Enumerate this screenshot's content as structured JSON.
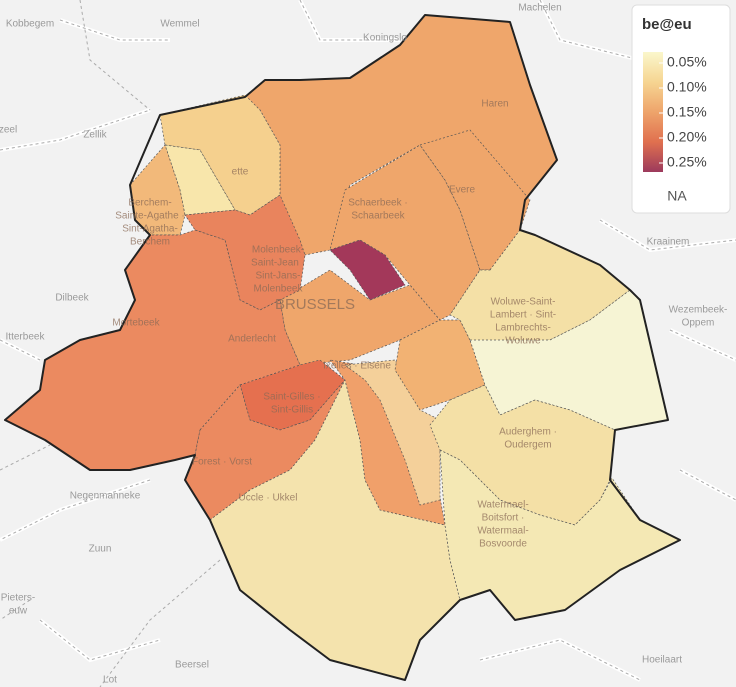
{
  "legend": {
    "title": "be@eu",
    "range": [
      0.028,
      0.268
    ],
    "ticks": [
      {
        "value": 0.05,
        "label": "0.05%"
      },
      {
        "value": 0.1,
        "label": "0.10%"
      },
      {
        "value": 0.15,
        "label": "0.15%"
      },
      {
        "value": 0.2,
        "label": "0.20%"
      },
      {
        "value": 0.25,
        "label": "0.25%"
      }
    ],
    "colors": [
      "#faf7cc",
      "#f6d592",
      "#eea46b",
      "#e0704f",
      "#9c3a5c"
    ],
    "na_label": "NA"
  },
  "regions": [
    {
      "color": "#efa66b"
    },
    {
      "color": "#efa66b"
    },
    {
      "color": "#f5d08e"
    },
    {
      "color": "#f8e6ab"
    },
    {
      "color": "#f2b97a"
    },
    {
      "color": "#e9845d"
    },
    {
      "color": "#eb8a60"
    },
    {
      "color": "#e5704f"
    },
    {
      "color": "#eb8a60"
    },
    {
      "color": "#f4e3ad"
    },
    {
      "color": "#f0a06a"
    },
    {
      "color": "#f4d09a"
    },
    {
      "color": "#f2b273"
    },
    {
      "color": "#efa66b"
    },
    {
      "color": "#efa66b"
    },
    {
      "color": "#a3385a"
    },
    {
      "color": "#f4e0a6"
    },
    {
      "color": "#f6f4d4"
    },
    {
      "color": "#f4e0a6"
    },
    {
      "color": "#f4e8b4"
    }
  ],
  "map_labels": [
    [
      "Kobbegem"
    ],
    [
      "Wemmel"
    ],
    [
      "Machelen"
    ],
    [
      "Koningslo"
    ],
    [
      "Zellik"
    ],
    [
      "zeel"
    ],
    [
      "Dilbeek"
    ],
    [
      "Itterbeek"
    ],
    [
      "Kraainem"
    ],
    [
      "Wezembeek-",
      "Oppem"
    ],
    [
      "Negenmanneke"
    ],
    [
      "Zuun"
    ],
    [
      "Pieters-",
      "euw"
    ],
    [
      "Beersel"
    ],
    [
      "Lot"
    ],
    [
      "Hoeilaart"
    ],
    [
      "Haren"
    ],
    [
      "Evere"
    ],
    [
      "Schaerbeek ·",
      "Schaarbeek"
    ],
    [
      "ette"
    ],
    [
      "Berchem-",
      "Sainte-Agathe ·",
      "Sint-Agatha-",
      "Berchem"
    ],
    [
      "Molenbeek-",
      "Saint-Jean ·",
      "Sint-Jans-",
      "Molenbeek"
    ],
    [
      "BRUSSELS"
    ],
    [
      "Mortebeek"
    ],
    [
      "Anderlecht"
    ],
    [
      "Ixelles · Elsene"
    ],
    [
      "Saint-Gilles ·",
      "Sint-Gillis"
    ],
    [
      "Forest · Vorst"
    ],
    [
      "Uccle · Ukkel"
    ],
    [
      "Auderghem ·",
      "Oudergem"
    ],
    [
      "Woluwe-Saint-",
      "Lambert · Sint-",
      "Lambrechts-",
      "Woluwe"
    ],
    [
      "Watermael-",
      "Boitsfort ·",
      "Watermaal-",
      "Bosvoorde"
    ]
  ]
}
